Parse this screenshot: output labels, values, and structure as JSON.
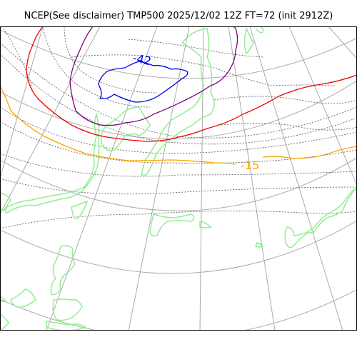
{
  "title": "NCEP(See disclaimer) TMP500 2025/12/02 12Z FT=72 (init 2912Z)",
  "contour_labels": {
    "cold_core": "-42",
    "isotherm_orange": "-15"
  },
  "colors": {
    "frame": "#000000",
    "graticule": "#aaaaaa",
    "coast": "#90ee90",
    "isotherm_minus42": "#0000ee",
    "isotherm_purple": "#800080",
    "isotherm_red": "#ee0000",
    "isotherm_orange": "#ffa500",
    "minor_contours": "#555555"
  }
}
